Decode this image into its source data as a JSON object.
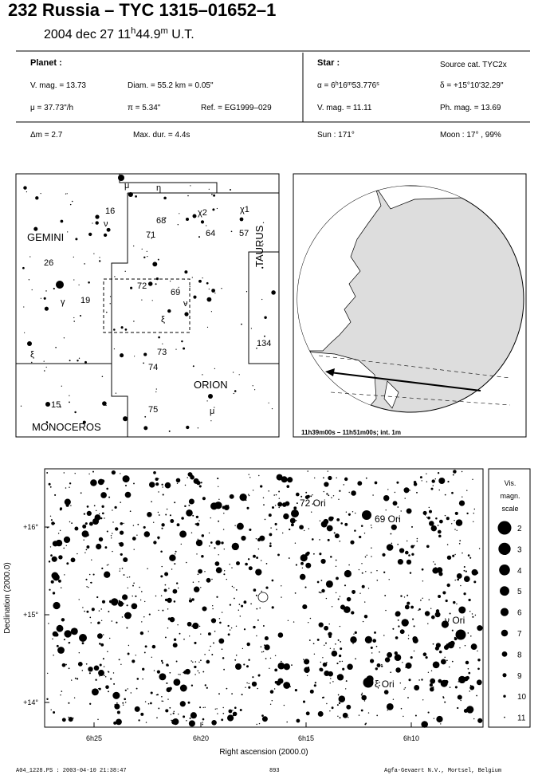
{
  "header": {
    "title": "232 Russia  –  TYC 1315–01652–1",
    "time": [
      "2004 dec 27  11",
      "h",
      "44.9",
      "m",
      " U.T."
    ]
  },
  "planet": {
    "heading": "Planet :",
    "vmag": "V. mag. = 13.73",
    "diam": "Diam. = 55.2 km = 0.05\"",
    "mu": "μ =  37.73\"/h",
    "pi": "π =  5.34\"",
    "ref": "Ref. = EG1999–029"
  },
  "star": {
    "heading": "Star :",
    "source": "Source cat.  TYC2x",
    "alpha": [
      "α =  6",
      "h",
      "16",
      "m",
      "53.776",
      "s"
    ],
    "delta": "δ = +15°10'32.29\"",
    "vmag": "V. mag. = 11.11",
    "phmag": "Ph. mag. = 13.69"
  },
  "summary": {
    "dm": "Δm = 2.7",
    "maxdur": "Max. dur. = 4.4s",
    "sun": "Sun : 171°",
    "moon": "Moon :  17° , 99%"
  },
  "finder_chart": {
    "labels": [
      "μ",
      "η",
      "16",
      "ν",
      "68",
      "χ2",
      "χ1",
      "71",
      "64",
      "57",
      "GEMINI",
      "26",
      "γ",
      "19",
      "72",
      "69",
      "ν",
      "ξ",
      "TAURUS",
      "73",
      "134",
      "ξ",
      "74",
      "ORION",
      "15",
      "75",
      "μ",
      "MONOCEROS"
    ]
  },
  "globe": {
    "caption": "11h39m00s – 11h51m00s; int.  1m"
  },
  "star_chart": {
    "y_label": "Declination (2000.0)",
    "x_label": "Right ascension (2000.0)",
    "y_ticks": [
      "+16°",
      "+15°",
      "+14°"
    ],
    "x_ticks": [
      "6h25",
      "6h20",
      "6h15",
      "6h10"
    ],
    "star_labels": [
      "72 Ori",
      "69 Ori",
      "ν Ori",
      "ξ Ori"
    ],
    "scale": {
      "title": [
        "Vis.",
        "magn.",
        "scale"
      ],
      "magnitudes": [
        2,
        3,
        4,
        5,
        6,
        7,
        8,
        9,
        10,
        11
      ]
    }
  },
  "footer": {
    "file": "A04_1228.PS : 2003-04-10 21:38:47",
    "page": "893",
    "company": "Agfa-Gevaert N.V., Mortsel, Belgium"
  }
}
